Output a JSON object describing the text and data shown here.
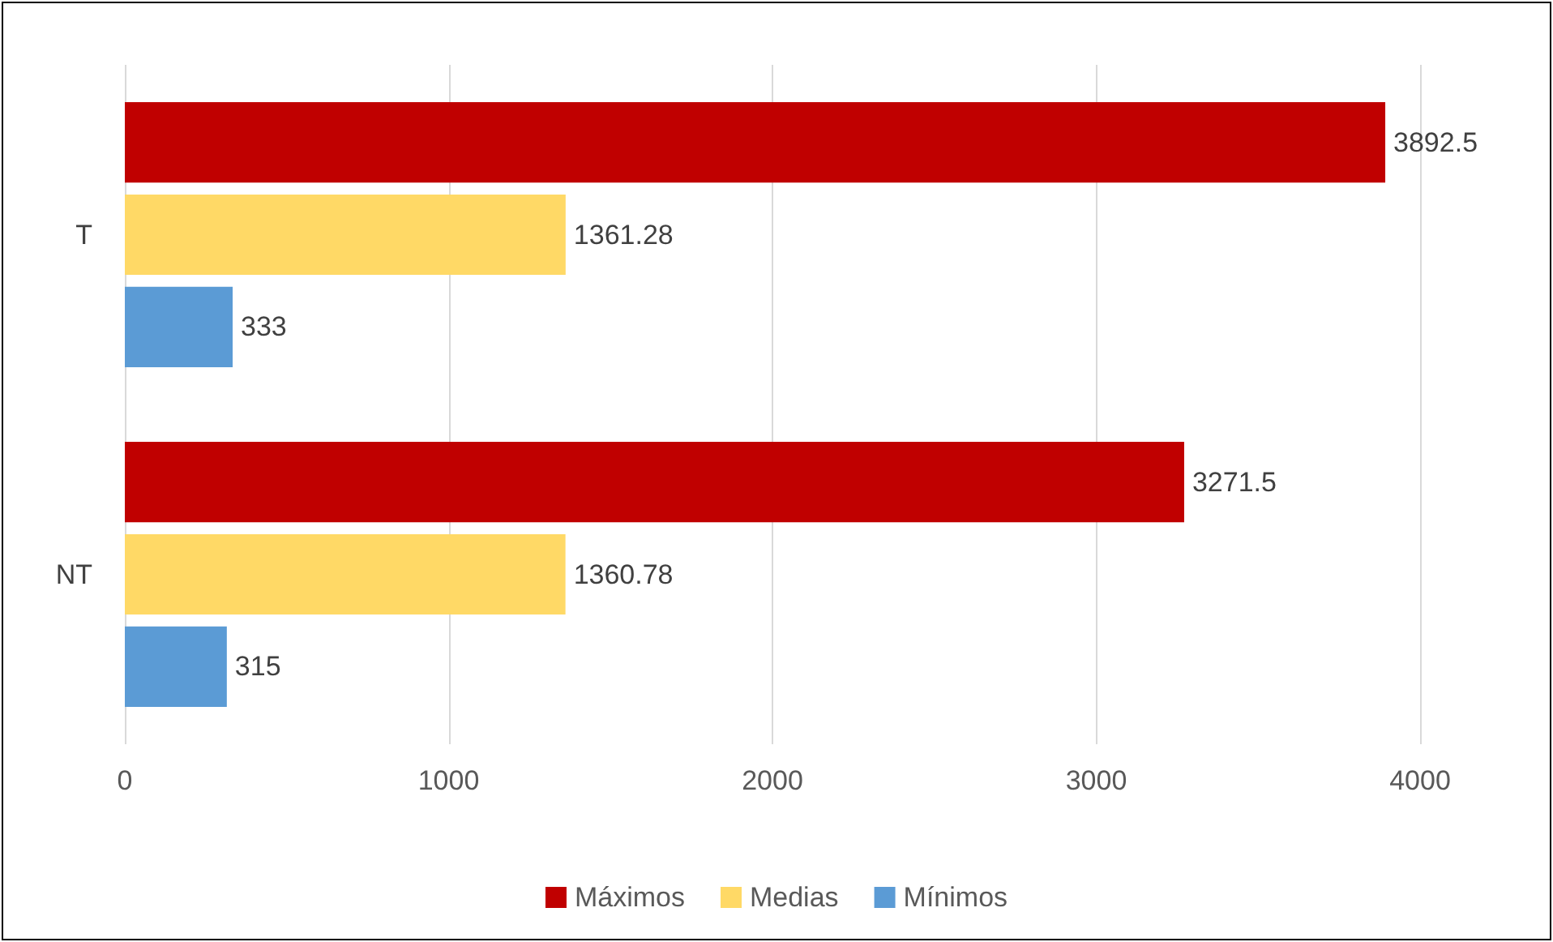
{
  "chart_data": {
    "type": "bar",
    "orientation": "horizontal",
    "categories": [
      "T",
      "NT"
    ],
    "series": [
      {
        "name": "Máximos",
        "color": "#c00000",
        "values": [
          3892.5,
          3271.5
        ]
      },
      {
        "name": "Medias",
        "color": "#ffd966",
        "values": [
          1361.28,
          1360.78
        ]
      },
      {
        "name": "Mínimos",
        "color": "#5b9bd5",
        "values": [
          333,
          315
        ]
      }
    ],
    "xlim": [
      0,
      4000
    ],
    "xticks": [
      0,
      1000,
      2000,
      3000,
      4000
    ],
    "grid": "x",
    "legend": "bottom",
    "data_labels": true
  }
}
